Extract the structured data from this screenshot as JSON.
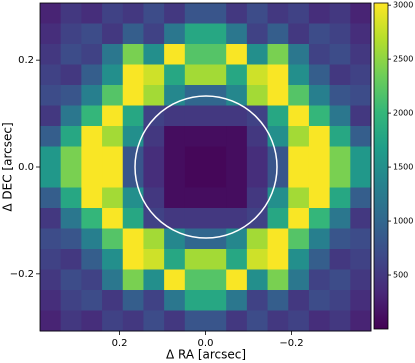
{
  "chart_data": {
    "type": "heatmap",
    "xlabel": "Δ RA [arcsec]",
    "ylabel": "Δ DEC [arcsec]",
    "xlim": [
      0.385,
      -0.385
    ],
    "ylim": [
      -0.307,
      0.307
    ],
    "xticks": [
      0.2,
      {
        "value": 0,
        "label": "0.0"
      },
      {
        "value": -0.2,
        "label": "−0.2"
      }
    ],
    "yticks": [
      {
        "value": -0.2,
        "label": "−0.2"
      },
      {
        "value": 0,
        "label": "0.0"
      },
      0.2
    ],
    "colormap": "viridis",
    "clim": [
      0,
      3020
    ],
    "cticks": [
      500,
      1000,
      1500,
      2000,
      2500,
      3000
    ],
    "z": [
      [
        300,
        500,
        400,
        600,
        500,
        700,
        500,
        800,
        800,
        500,
        700,
        500,
        600,
        400,
        500,
        300
      ],
      [
        400,
        600,
        700,
        500,
        900,
        600,
        1200,
        1800,
        1800,
        1200,
        600,
        900,
        500,
        700,
        600,
        400
      ],
      [
        500,
        700,
        600,
        1200,
        2400,
        1500,
        3000,
        2200,
        2200,
        3000,
        1500,
        2400,
        1200,
        600,
        700,
        500
      ],
      [
        600,
        500,
        900,
        1500,
        3000,
        2800,
        1800,
        2600,
        2600,
        1800,
        2800,
        3000,
        1500,
        900,
        500,
        600
      ],
      [
        700,
        800,
        1300,
        2200,
        3000,
        2600,
        1400,
        1000,
        1000,
        1400,
        2600,
        3000,
        2200,
        1300,
        800,
        700
      ],
      [
        500,
        1200,
        2000,
        3000,
        1800,
        600,
        500,
        500,
        500,
        500,
        600,
        1800,
        3000,
        2000,
        1200,
        500
      ],
      [
        900,
        1800,
        3000,
        2600,
        1500,
        500,
        100,
        100,
        100,
        100,
        500,
        1500,
        2600,
        3000,
        1800,
        900
      ],
      [
        1600,
        2400,
        3000,
        3000,
        800,
        400,
        100,
        50,
        50,
        100,
        400,
        800,
        3000,
        3000,
        2400,
        1600
      ],
      [
        1600,
        2400,
        3000,
        3000,
        800,
        400,
        100,
        50,
        50,
        100,
        400,
        800,
        3000,
        3000,
        2400,
        1600
      ],
      [
        900,
        1800,
        3000,
        2600,
        1500,
        500,
        100,
        100,
        100,
        100,
        500,
        1500,
        2600,
        3000,
        1800,
        900
      ],
      [
        500,
        1200,
        2000,
        3000,
        1800,
        600,
        500,
        500,
        500,
        500,
        600,
        1800,
        3000,
        2000,
        1200,
        500
      ],
      [
        700,
        800,
        1300,
        2200,
        3000,
        2600,
        1400,
        1000,
        1000,
        1400,
        2600,
        3000,
        2200,
        1300,
        800,
        700
      ],
      [
        600,
        500,
        900,
        1500,
        3000,
        2800,
        1800,
        2600,
        2600,
        1800,
        2800,
        3000,
        1500,
        900,
        500,
        600
      ],
      [
        500,
        700,
        600,
        1200,
        2400,
        1500,
        3000,
        2200,
        2200,
        3000,
        1500,
        2400,
        1200,
        600,
        700,
        500
      ],
      [
        400,
        600,
        700,
        500,
        900,
        600,
        1200,
        1800,
        1800,
        1200,
        600,
        900,
        500,
        700,
        600,
        400
      ],
      [
        300,
        500,
        400,
        600,
        500,
        700,
        500,
        800,
        800,
        500,
        700,
        500,
        600,
        400,
        500,
        300
      ]
    ]
  }
}
